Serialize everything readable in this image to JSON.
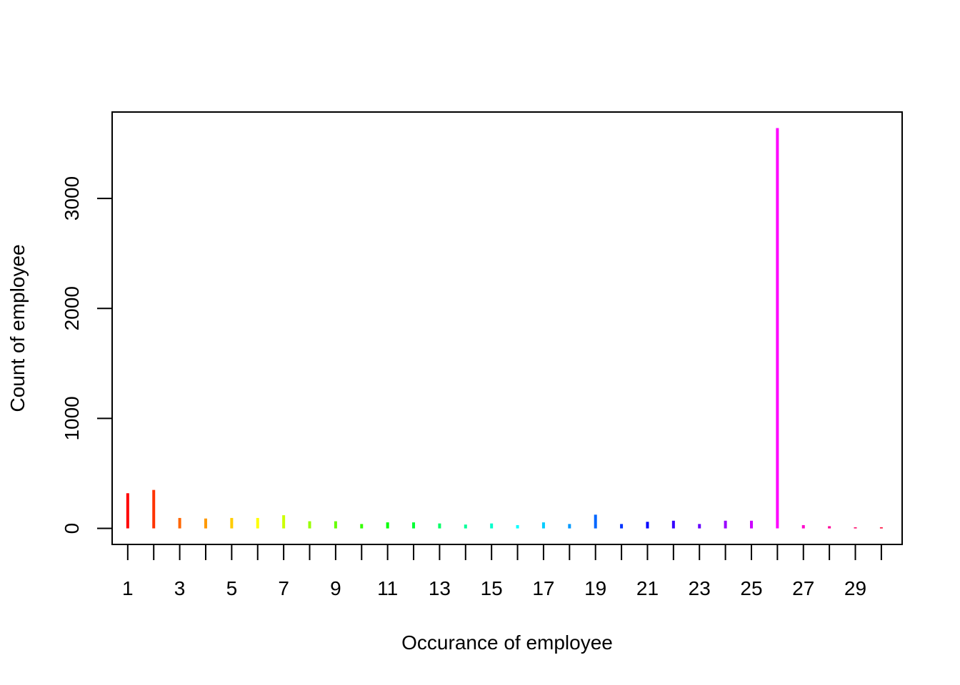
{
  "chart_data": {
    "type": "bar",
    "title": "",
    "xlabel": "Occurance of employee",
    "ylabel": "Count of employee",
    "x": [
      1,
      2,
      3,
      4,
      5,
      6,
      7,
      8,
      9,
      10,
      11,
      12,
      13,
      14,
      15,
      16,
      17,
      18,
      19,
      20,
      21,
      22,
      23,
      24,
      25,
      26,
      27,
      28,
      29,
      30
    ],
    "values": [
      320,
      350,
      95,
      90,
      95,
      95,
      120,
      65,
      65,
      40,
      55,
      55,
      45,
      35,
      45,
      30,
      55,
      40,
      125,
      40,
      60,
      70,
      40,
      70,
      70,
      3640,
      30,
      20,
      10,
      10
    ],
    "x_tick_labels": [
      "1",
      "3",
      "5",
      "7",
      "9",
      "11",
      "13",
      "15",
      "17",
      "19",
      "21",
      "23",
      "25",
      "27",
      "29"
    ],
    "y_ticks": [
      0,
      1000,
      2000,
      3000
    ],
    "y_tick_labels": [
      "0",
      "1000",
      "2000",
      "3000"
    ],
    "xlim": [
      0.4,
      30.8
    ],
    "ylim": [
      -145.6,
      3785.6
    ],
    "grid": false,
    "colors": [
      "#FF0000",
      "#FF3300",
      "#FF6600",
      "#FF9900",
      "#FFCC00",
      "#FFFF00",
      "#CCFF00",
      "#99FF00",
      "#66FF00",
      "#33FF00",
      "#00FF00",
      "#00FF33",
      "#00FF66",
      "#00FF99",
      "#00FFCC",
      "#00FFFF",
      "#00CCFF",
      "#0099FF",
      "#0066FF",
      "#0033FF",
      "#0000FF",
      "#3300FF",
      "#6600FF",
      "#9900FF",
      "#CC00FF",
      "#FF00FF",
      "#FF00CC",
      "#FF0099",
      "#FF0066",
      "#FF0033"
    ]
  }
}
